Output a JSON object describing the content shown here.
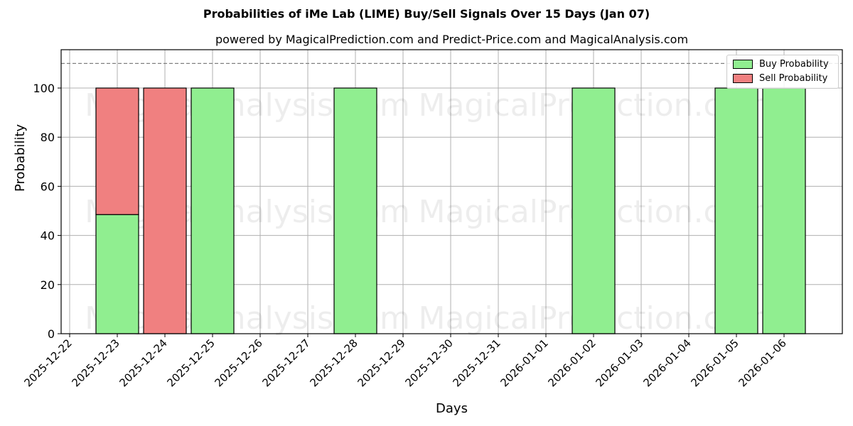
{
  "header": {
    "title": "Probabilities of iMe Lab (LIME) Buy/Sell Signals Over 15 Days (Jan 07)",
    "subtitle": "powered by MagicalPrediction.com and Predict-Price.com and MagicalAnalysis.com"
  },
  "legend": {
    "buy_label": "Buy Probability",
    "sell_label": "Sell Probability"
  },
  "watermarks": [
    "MagicalAnalysis.com",
    "MagicalPrediction.com"
  ],
  "colors": {
    "buy": "#90ee90",
    "sell": "#f08080",
    "grid": "#b0b0b0",
    "threshold": "#808080"
  },
  "chart_data": {
    "type": "bar",
    "stacked": true,
    "title": "Probabilities of iMe Lab (LIME) Buy/Sell Signals Over 15 Days (Jan 07)",
    "subtitle": "powered by MagicalPrediction.com and Predict-Price.com and MagicalAnalysis.com",
    "xlabel": "Days",
    "ylabel": "Probability",
    "ylim": [
      0,
      115
    ],
    "yticks": [
      0,
      20,
      40,
      60,
      80,
      100
    ],
    "grid": true,
    "legend_position": "upper right",
    "threshold_line": 110,
    "categories": [
      "2025-12-22",
      "2025-12-23",
      "2025-12-24",
      "2025-12-25",
      "2025-12-26",
      "2025-12-27",
      "2025-12-28",
      "2025-12-29",
      "2025-12-30",
      "2025-12-31",
      "2026-01-01",
      "2026-01-02",
      "2026-01-03",
      "2026-01-04",
      "2026-01-05",
      "2026-01-06"
    ],
    "series": [
      {
        "name": "Buy Probability",
        "color": "#90ee90",
        "values": [
          0,
          48.5,
          0,
          100,
          0,
          0,
          100,
          0,
          0,
          0,
          0,
          100,
          0,
          0,
          100,
          100
        ]
      },
      {
        "name": "Sell Probability",
        "color": "#f08080",
        "values": [
          0,
          51.5,
          100,
          0,
          0,
          0,
          0,
          0,
          0,
          0,
          0,
          0,
          0,
          0,
          0,
          0
        ]
      }
    ]
  }
}
